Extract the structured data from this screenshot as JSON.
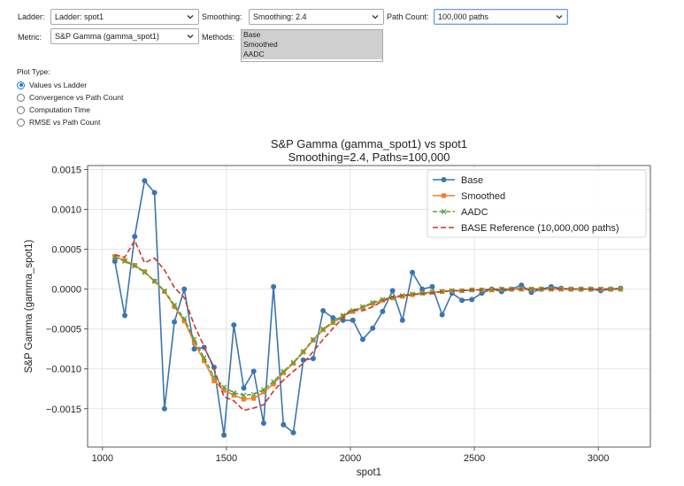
{
  "controls": {
    "ladder": {
      "label": "Ladder:",
      "value": "Ladder: spot1"
    },
    "smoothing": {
      "label": "Smoothing:",
      "value": "Smoothing: 2.4"
    },
    "path_count": {
      "label": "Path Count:",
      "value": "100,000 paths"
    },
    "metric": {
      "label": "Metric:",
      "value": "S&P Gamma (gamma_spot1)"
    },
    "methods": {
      "label": "Methods:",
      "options": [
        "Base",
        "Smoothed",
        "AADC"
      ]
    },
    "plot_type": {
      "label": "Plot Type:",
      "options": [
        "Values vs Ladder",
        "Convergence vs Path Count",
        "Computation Time",
        "RMSE vs Path Count"
      ],
      "selected": 0
    }
  },
  "chart_data": {
    "type": "line",
    "title": "S&P Gamma (gamma_spot1) vs spot1",
    "subtitle": "Smoothing=2.4, Paths=100,000",
    "xlabel": "spot1",
    "ylabel": "S&P Gamma (gamma_spot1)",
    "xlim": [
      940,
      3210
    ],
    "ylim": [
      -0.00198,
      0.00155
    ],
    "xticks": [
      1000,
      1500,
      2000,
      2500,
      3000
    ],
    "yticks": [
      0.0015,
      0.001,
      0.0005,
      0.0,
      -0.0005,
      -0.001,
      -0.0015
    ],
    "ytick_labels": [
      "0.0015",
      "0.0010",
      "0.0005",
      "0.0000",
      "−0.0005",
      "−0.0010",
      "−0.0015"
    ],
    "grid": true,
    "legend_position": "top-right",
    "series": [
      {
        "name": "Base",
        "color": "#3a75b0",
        "style": "solid",
        "marker": "circle",
        "x": [
          1050,
          1090,
          1130,
          1170,
          1210,
          1250,
          1290,
          1330,
          1370,
          1410,
          1450,
          1490,
          1530,
          1570,
          1610,
          1650,
          1690,
          1730,
          1770,
          1810,
          1850,
          1890,
          1930,
          1970,
          2010,
          2050,
          2090,
          2130,
          2170,
          2210,
          2250,
          2290,
          2330,
          2370,
          2410,
          2450,
          2490,
          2530,
          2570,
          2610,
          2650,
          2690,
          2730,
          2770,
          2810,
          2850,
          2890,
          2930,
          2970,
          3010,
          3050,
          3090
        ],
        "y": [
          0.00035,
          -0.00033,
          0.00066,
          0.00136,
          0.00121,
          -0.0015,
          -0.00041,
          0.0,
          -0.00075,
          -0.00073,
          -0.00098,
          -0.00183,
          -0.00045,
          -0.00124,
          -0.00103,
          -0.00168,
          3e-05,
          -0.0017,
          -0.0018,
          -0.00089,
          -0.00087,
          -0.00027,
          -0.00036,
          -0.00039,
          -0.00039,
          -0.00063,
          -0.00049,
          -0.00028,
          -2e-05,
          -0.00039,
          0.00021,
          0.0,
          3e-05,
          -0.00032,
          -5e-05,
          -0.00014,
          -0.00013,
          -5e-05,
          0.0,
          -3e-05,
          0.0,
          5e-05,
          -4e-05,
          0.0,
          3e-05,
          1e-05,
          0.0,
          0.0,
          0.0,
          -2e-05,
          0.0,
          1e-05
        ]
      },
      {
        "name": "Smoothed",
        "color": "#f07f2a",
        "style": "solid",
        "marker": "square",
        "x": [
          1050,
          1090,
          1130,
          1170,
          1210,
          1250,
          1290,
          1330,
          1370,
          1410,
          1450,
          1490,
          1530,
          1570,
          1610,
          1650,
          1690,
          1730,
          1770,
          1810,
          1850,
          1890,
          1930,
          1970,
          2010,
          2050,
          2090,
          2130,
          2170,
          2210,
          2250,
          2290,
          2330,
          2370,
          2410,
          2450,
          2490,
          2530,
          2570,
          2610,
          2650,
          2690,
          2730,
          2770,
          2810,
          2850,
          2890,
          2930,
          2970,
          3010,
          3050,
          3090
        ],
        "y": [
          0.00041,
          0.00036,
          0.0003,
          0.00022,
          0.0001,
          -3e-05,
          -0.00022,
          -0.0004,
          -0.00067,
          -0.0009,
          -0.00115,
          -0.00127,
          -0.00133,
          -0.00138,
          -0.00137,
          -0.00129,
          -0.00119,
          -0.00105,
          -0.00093,
          -0.00079,
          -0.00064,
          -0.00051,
          -0.00042,
          -0.00034,
          -0.00028,
          -0.00023,
          -0.00018,
          -0.00014,
          -0.00011,
          -9e-05,
          -7e-05,
          -5e-05,
          -4e-05,
          -3e-05,
          -2e-05,
          -2e-05,
          -1e-05,
          -1e-05,
          -1e-05,
          0.0,
          0.0,
          0.0,
          0.0,
          0.0,
          0.0,
          0.0,
          0.0,
          0.0,
          0.0,
          0.0,
          0.0,
          0.0
        ]
      },
      {
        "name": "AADC",
        "color": "#5aa03c",
        "style": "dashed",
        "marker": "x",
        "x": [
          1050,
          1090,
          1130,
          1170,
          1210,
          1250,
          1290,
          1330,
          1370,
          1410,
          1450,
          1490,
          1530,
          1570,
          1610,
          1650,
          1690,
          1730,
          1770,
          1810,
          1850,
          1890,
          1930,
          1970,
          2010,
          2050,
          2090,
          2130,
          2170,
          2210,
          2250,
          2290,
          2330,
          2370,
          2410,
          2450,
          2490,
          2530,
          2570,
          2610,
          2650,
          2690,
          2730,
          2770,
          2810,
          2850,
          2890,
          2930,
          2970,
          3010,
          3050,
          3090
        ],
        "y": [
          0.0004,
          0.00035,
          0.00029,
          0.00021,
          0.0001,
          -2e-05,
          -0.0002,
          -0.00037,
          -0.00063,
          -0.00086,
          -0.0011,
          -0.00123,
          -0.0013,
          -0.00133,
          -0.00132,
          -0.00126,
          -0.00116,
          -0.00103,
          -0.00092,
          -0.00078,
          -0.00063,
          -0.0005,
          -0.00041,
          -0.00033,
          -0.00027,
          -0.00022,
          -0.00017,
          -0.00013,
          -0.0001,
          -8e-05,
          -6e-05,
          -5e-05,
          -4e-05,
          -3e-05,
          -2e-05,
          -2e-05,
          -1e-05,
          -1e-05,
          -1e-05,
          0.0,
          0.0,
          0.0,
          0.0,
          0.0,
          0.0,
          0.0,
          0.0,
          0.0,
          0.0,
          0.0,
          0.0,
          0.0
        ]
      },
      {
        "name": "BASE Reference (10,000,000 paths)",
        "color": "#d0352b",
        "style": "dashed",
        "marker": "none",
        "x": [
          1050,
          1090,
          1130,
          1170,
          1210,
          1250,
          1290,
          1330,
          1370,
          1410,
          1450,
          1490,
          1530,
          1570,
          1610,
          1650,
          1690,
          1730,
          1770,
          1810,
          1850,
          1890,
          1930,
          1970,
          2000,
          2050,
          2090,
          2130,
          2170,
          2210,
          2250,
          2290,
          2330,
          2370,
          2410,
          2450,
          2490,
          2530,
          2570,
          2610,
          2650,
          2690,
          2730,
          2770,
          2810,
          2850,
          2890,
          2930,
          2970,
          3010,
          3050,
          3090
        ],
        "y": [
          0.00043,
          0.0004,
          0.00061,
          0.00033,
          0.00039,
          0.00024,
          2e-05,
          -0.00011,
          -0.00045,
          -0.00072,
          -0.001,
          -0.00135,
          -0.0014,
          -0.00152,
          -0.00149,
          -0.00145,
          -0.00128,
          -0.00114,
          -0.00103,
          -0.00093,
          -0.00078,
          -0.00063,
          -0.00049,
          -0.00036,
          -0.00026,
          -0.00027,
          -0.00022,
          -0.00015,
          -0.0001,
          -8e-05,
          -7e-05,
          -6e-05,
          -5e-05,
          -3e-05,
          -2e-05,
          -2e-05,
          -1e-05,
          -1e-05,
          0.0,
          0.0,
          0.0,
          0.0,
          0.0,
          0.0,
          0.0,
          0.0,
          0.0,
          0.0,
          0.0,
          0.0,
          0.0,
          0.0
        ]
      }
    ]
  }
}
